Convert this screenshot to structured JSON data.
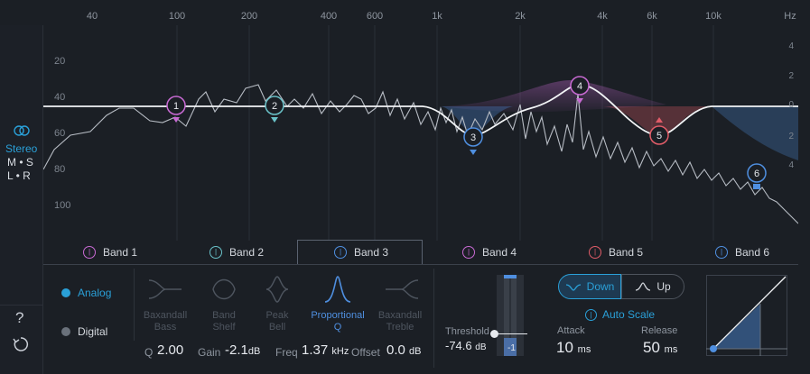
{
  "freq_axis": {
    "ticks": [
      "40",
      "100",
      "200",
      "400",
      "600",
      "1k",
      "2k",
      "4k",
      "6k",
      "10k"
    ],
    "unit": "Hz"
  },
  "db_left": [
    "20",
    "40",
    "60",
    "80",
    "100"
  ],
  "db_right": [
    "4",
    "2",
    "0",
    "2",
    "4"
  ],
  "rail": {
    "stereo_label": "Stereo",
    "ms_label": "M • S",
    "lr_label": "L • R",
    "help_label": "?"
  },
  "nodes": [
    {
      "num": "1",
      "color": "#c86ad3"
    },
    {
      "num": "2",
      "color": "#6ac2c9"
    },
    {
      "num": "3",
      "color": "#4f8fe0"
    },
    {
      "num": "4",
      "color": "#c86ad3"
    },
    {
      "num": "5",
      "color": "#e05c68"
    },
    {
      "num": "6",
      "color": "#4f8fe0"
    }
  ],
  "tabs": [
    {
      "label": "Band 1",
      "color": "#c86ad3",
      "icon": "power-icon"
    },
    {
      "label": "Band 2",
      "color": "#6ac2c9",
      "icon": "power-icon"
    },
    {
      "label": "Band 3",
      "color": "#4f8fe0",
      "icon": "power-icon",
      "active": true
    },
    {
      "label": "Band 4",
      "color": "#c86ad3",
      "icon": "power-icon"
    },
    {
      "label": "Band 5",
      "color": "#e05c68",
      "icon": "power-icon"
    },
    {
      "label": "Band 6",
      "color": "#4f8fe0",
      "icon": "power-icon"
    }
  ],
  "mode": {
    "analog": "Analog",
    "digital": "Digital",
    "selected": "Analog"
  },
  "shapes": [
    {
      "label": "Baxandall\nBass"
    },
    {
      "label": "Band\nShelf"
    },
    {
      "label": "Peak\nBell"
    },
    {
      "label": "Proportional\nQ",
      "active": true
    },
    {
      "label": "Baxandall\nTreble"
    }
  ],
  "params": {
    "q_label": "Q",
    "q_value": "2.00",
    "gain_label": "Gain",
    "gain_value": "-2.1",
    "gain_unit": "dB",
    "freq_label": "Freq",
    "freq_value": "1.37",
    "freq_unit": "kHz",
    "offset_label": "Offset",
    "offset_value": "0.0",
    "offset_unit": "dB"
  },
  "threshold": {
    "label": "Threshold",
    "value": "-74.6",
    "unit": "dB",
    "meter_label": "-1"
  },
  "dynamics": {
    "down": "Down",
    "up": "Up",
    "selected": "Down",
    "auto_scale": "Auto Scale",
    "attack_label": "Attack",
    "attack_value": "10",
    "attack_unit": "ms",
    "release_label": "Release",
    "release_value": "50",
    "release_unit": "ms"
  },
  "colors": {
    "accent": "#2aa0d8",
    "band3": "#4f8fe0",
    "bg": "#1b1f25"
  }
}
